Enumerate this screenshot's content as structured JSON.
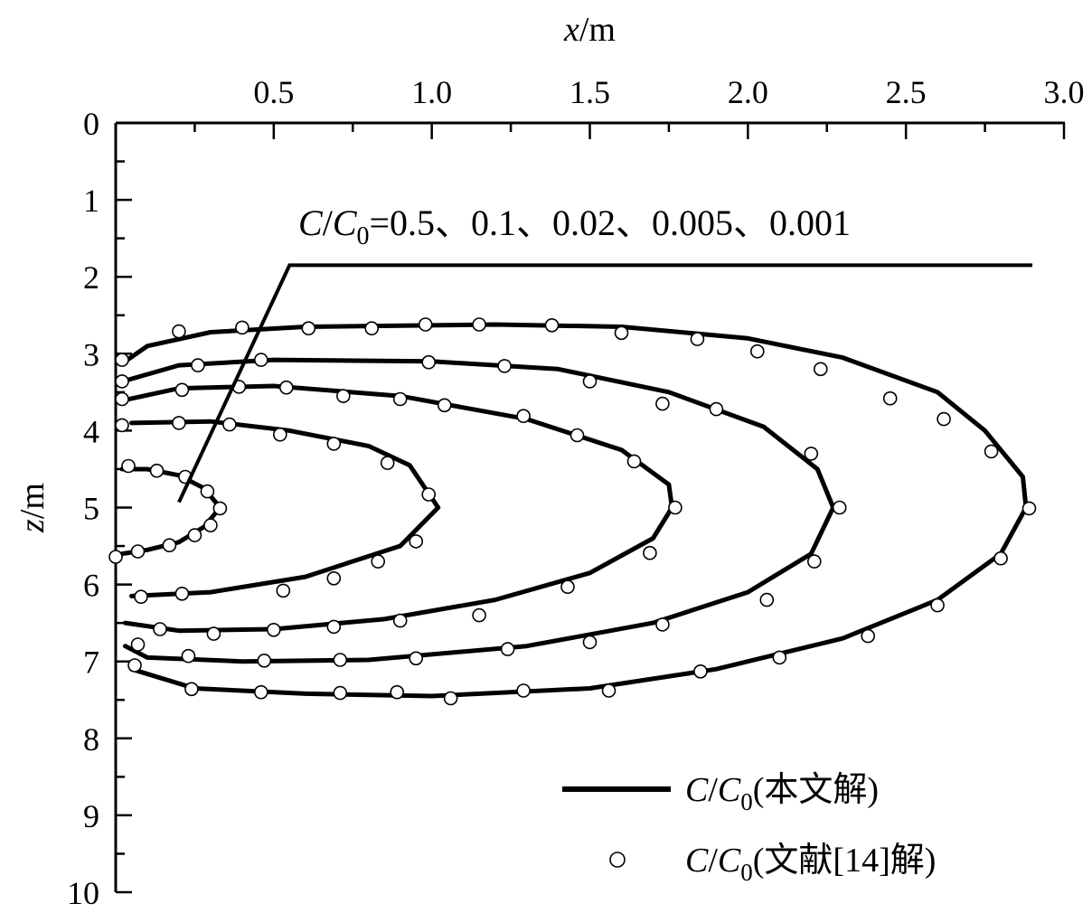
{
  "chart_data": {
    "type": "line",
    "xlabel_var": "x",
    "xlabel_unit": "/m",
    "ylabel_var": "z",
    "ylabel_unit": "/m",
    "xlim": [
      0,
      3.0
    ],
    "ylim": [
      0,
      10
    ],
    "x_axis_position": "top",
    "y_axis_inverted": true,
    "x_ticks": [
      "0.5",
      "1.0",
      "1.5",
      "2.0",
      "2.5",
      "3.0"
    ],
    "y_ticks": [
      "0",
      "1",
      "2",
      "3",
      "4",
      "5",
      "6",
      "7",
      "8",
      "9",
      "10"
    ],
    "grid": false,
    "annotation": {
      "var": "C",
      "sep": "/",
      "var0": "C",
      "sub": "0",
      "text": "=0.5、0.1、0.02、0.005、0.001",
      "leader_from": {
        "x": 0.2,
        "z": 4.93
      },
      "leader_elbow": {
        "x": 0.55,
        "z": 1.85
      },
      "leader_to": {
        "x": 2.9,
        "z": 1.85
      }
    },
    "legend": {
      "position": "bottom-right",
      "entries": [
        {
          "marker": "line",
          "var": "C",
          "sep": "/",
          "var0": "C",
          "sub": "0",
          "text": "(本文解)"
        },
        {
          "marker": "circle",
          "var": "C",
          "sep": "/",
          "var0": "C",
          "sub": "0",
          "text": "(文献[14]解)"
        }
      ]
    },
    "series": [
      {
        "level": "0.5",
        "line": [
          [
            0.02,
            4.5
          ],
          [
            0.1,
            4.5
          ],
          [
            0.2,
            4.58
          ],
          [
            0.28,
            4.75
          ],
          [
            0.33,
            5.0
          ],
          [
            0.28,
            5.25
          ],
          [
            0.2,
            5.45
          ],
          [
            0.1,
            5.55
          ],
          [
            0.02,
            5.6
          ]
        ],
        "points": [
          [
            0.04,
            4.46
          ],
          [
            0.13,
            4.52
          ],
          [
            0.22,
            4.6
          ],
          [
            0.29,
            4.79
          ],
          [
            0.33,
            5.01
          ],
          [
            0.3,
            5.23
          ],
          [
            0.25,
            5.36
          ],
          [
            0.17,
            5.49
          ],
          [
            0.07,
            5.57
          ],
          [
            0.0,
            5.64
          ]
        ]
      },
      {
        "level": "0.1",
        "line": [
          [
            0.05,
            3.9
          ],
          [
            0.3,
            3.88
          ],
          [
            0.55,
            4.0
          ],
          [
            0.8,
            4.2
          ],
          [
            0.93,
            4.45
          ],
          [
            1.02,
            5.0
          ],
          [
            0.9,
            5.5
          ],
          [
            0.6,
            5.9
          ],
          [
            0.3,
            6.1
          ],
          [
            0.05,
            6.15
          ]
        ],
        "points": [
          [
            0.02,
            3.93
          ],
          [
            0.2,
            3.9
          ],
          [
            0.36,
            3.92
          ],
          [
            0.52,
            4.05
          ],
          [
            0.69,
            4.17
          ],
          [
            0.86,
            4.42
          ],
          [
            0.99,
            4.83
          ],
          [
            0.95,
            5.44
          ],
          [
            0.83,
            5.7
          ],
          [
            0.69,
            5.92
          ],
          [
            0.53,
            6.08
          ],
          [
            0.21,
            6.12
          ],
          [
            0.08,
            6.16
          ]
        ]
      },
      {
        "level": "0.02",
        "line": [
          [
            0.03,
            3.6
          ],
          [
            0.2,
            3.45
          ],
          [
            0.5,
            3.42
          ],
          [
            0.9,
            3.55
          ],
          [
            1.3,
            3.85
          ],
          [
            1.6,
            4.25
          ],
          [
            1.75,
            4.7
          ],
          [
            1.76,
            5.0
          ],
          [
            1.7,
            5.4
          ],
          [
            1.5,
            5.85
          ],
          [
            1.2,
            6.2
          ],
          [
            0.85,
            6.45
          ],
          [
            0.5,
            6.58
          ],
          [
            0.2,
            6.6
          ],
          [
            0.03,
            6.5
          ]
        ],
        "points": [
          [
            0.02,
            3.59
          ],
          [
            0.21,
            3.47
          ],
          [
            0.39,
            3.43
          ],
          [
            0.54,
            3.44
          ],
          [
            0.72,
            3.55
          ],
          [
            0.9,
            3.59
          ],
          [
            1.04,
            3.67
          ],
          [
            1.29,
            3.81
          ],
          [
            1.46,
            4.06
          ],
          [
            1.64,
            4.4
          ],
          [
            1.77,
            5.0
          ],
          [
            1.69,
            5.59
          ],
          [
            1.43,
            6.03
          ],
          [
            1.15,
            6.4
          ],
          [
            0.9,
            6.47
          ],
          [
            0.69,
            6.55
          ],
          [
            0.5,
            6.59
          ],
          [
            0.31,
            6.64
          ],
          [
            0.14,
            6.58
          ]
        ]
      },
      {
        "level": "0.005",
        "line": [
          [
            0.03,
            3.35
          ],
          [
            0.2,
            3.15
          ],
          [
            0.5,
            3.08
          ],
          [
            1.0,
            3.1
          ],
          [
            1.4,
            3.2
          ],
          [
            1.75,
            3.5
          ],
          [
            2.05,
            3.95
          ],
          [
            2.22,
            4.5
          ],
          [
            2.27,
            5.0
          ],
          [
            2.2,
            5.6
          ],
          [
            2.0,
            6.1
          ],
          [
            1.7,
            6.5
          ],
          [
            1.3,
            6.8
          ],
          [
            0.8,
            6.98
          ],
          [
            0.4,
            7.0
          ],
          [
            0.1,
            6.95
          ],
          [
            0.03,
            6.8
          ]
        ],
        "points": [
          [
            0.02,
            3.36
          ],
          [
            0.26,
            3.15
          ],
          [
            0.46,
            3.08
          ],
          [
            0.99,
            3.11
          ],
          [
            1.23,
            3.16
          ],
          [
            1.5,
            3.36
          ],
          [
            1.73,
            3.65
          ],
          [
            1.9,
            3.72
          ],
          [
            2.2,
            4.3
          ],
          [
            2.29,
            5.0
          ],
          [
            2.21,
            5.7
          ],
          [
            2.06,
            6.2
          ],
          [
            1.73,
            6.52
          ],
          [
            1.5,
            6.75
          ],
          [
            1.24,
            6.84
          ],
          [
            0.95,
            6.96
          ],
          [
            0.71,
            6.98
          ],
          [
            0.47,
            6.99
          ],
          [
            0.23,
            6.93
          ],
          [
            0.07,
            6.78
          ]
        ]
      },
      {
        "level": "0.001",
        "line": [
          [
            0.03,
            3.1
          ],
          [
            0.1,
            2.9
          ],
          [
            0.3,
            2.72
          ],
          [
            0.6,
            2.65
          ],
          [
            1.2,
            2.62
          ],
          [
            1.6,
            2.65
          ],
          [
            2.0,
            2.8
          ],
          [
            2.3,
            3.05
          ],
          [
            2.6,
            3.5
          ],
          [
            2.75,
            4.0
          ],
          [
            2.87,
            4.6
          ],
          [
            2.88,
            5.0
          ],
          [
            2.8,
            5.6
          ],
          [
            2.6,
            6.2
          ],
          [
            2.3,
            6.7
          ],
          [
            1.9,
            7.1
          ],
          [
            1.5,
            7.35
          ],
          [
            1.0,
            7.45
          ],
          [
            0.6,
            7.42
          ],
          [
            0.25,
            7.35
          ],
          [
            0.05,
            7.1
          ]
        ],
        "points": [
          [
            0.02,
            3.08
          ],
          [
            0.2,
            2.71
          ],
          [
            0.4,
            2.66
          ],
          [
            0.61,
            2.67
          ],
          [
            0.81,
            2.67
          ],
          [
            0.98,
            2.62
          ],
          [
            1.15,
            2.62
          ],
          [
            1.38,
            2.63
          ],
          [
            1.6,
            2.73
          ],
          [
            1.84,
            2.81
          ],
          [
            2.03,
            2.97
          ],
          [
            2.23,
            3.2
          ],
          [
            2.45,
            3.58
          ],
          [
            2.62,
            3.85
          ],
          [
            2.77,
            4.27
          ],
          [
            2.89,
            5.01
          ],
          [
            2.8,
            5.66
          ],
          [
            2.6,
            6.27
          ],
          [
            2.38,
            6.67
          ],
          [
            2.1,
            6.95
          ],
          [
            1.85,
            7.13
          ],
          [
            1.56,
            7.38
          ],
          [
            1.29,
            7.38
          ],
          [
            1.06,
            7.48
          ],
          [
            0.89,
            7.4
          ],
          [
            0.71,
            7.41
          ],
          [
            0.46,
            7.4
          ],
          [
            0.24,
            7.36
          ],
          [
            0.06,
            7.05
          ]
        ]
      }
    ]
  }
}
